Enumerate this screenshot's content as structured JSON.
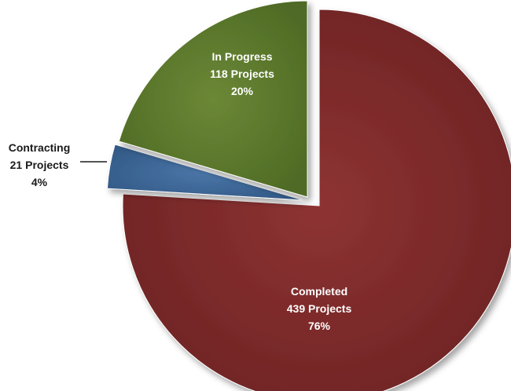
{
  "chart_data": {
    "type": "pie",
    "exploded": true,
    "slices": [
      {
        "label": "Completed",
        "count_text": "439 Projects",
        "pct_text": "76%",
        "value": 439,
        "percent": 76,
        "color": "#7d2a2a"
      },
      {
        "label": "Contracting",
        "count_text": "21 Projects",
        "pct_text": "4%",
        "value": 21,
        "percent": 4,
        "color": "#3f6797"
      },
      {
        "label": "In Progress",
        "count_text": "118 Projects",
        "pct_text": "20%",
        "value": 118,
        "percent": 20,
        "color": "#5e7a2e"
      }
    ]
  }
}
